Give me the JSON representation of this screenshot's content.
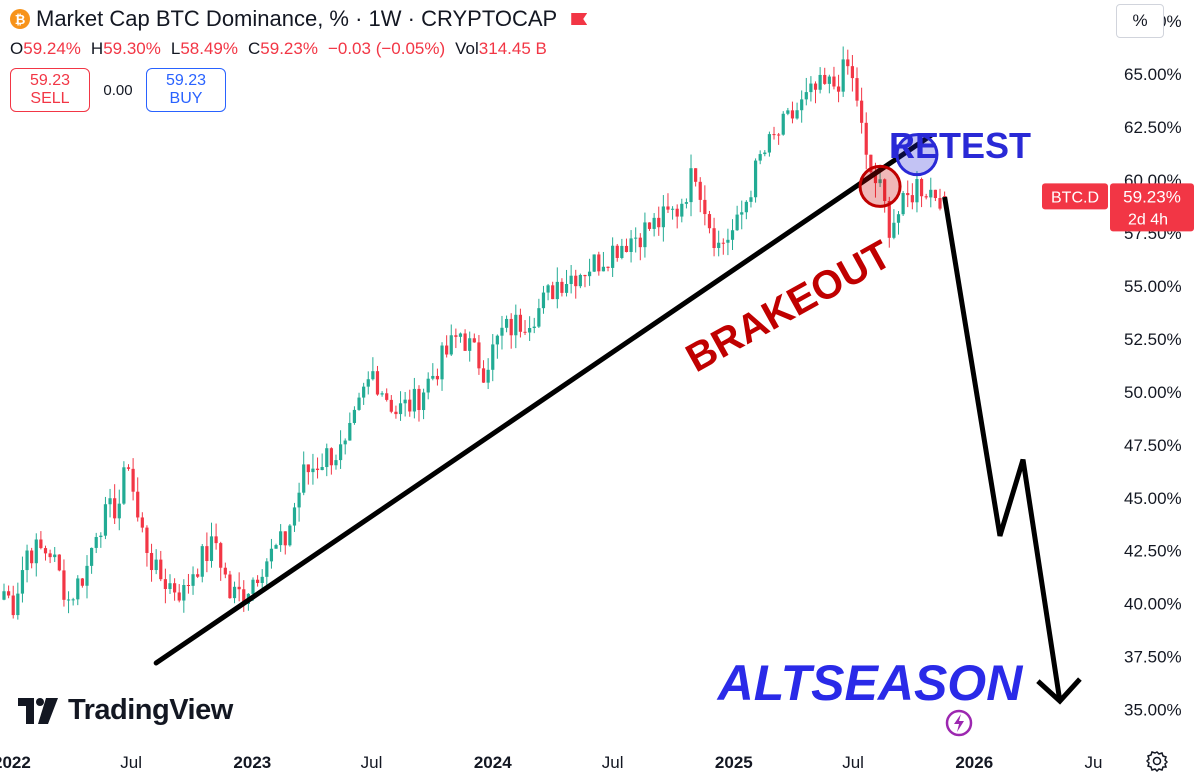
{
  "header": {
    "logo_glyph": "₿",
    "title": "Market Cap BTC Dominance, % · 1W · CRYPTOCAP",
    "open_label": "O",
    "open_value": "59.24%",
    "high_label": "H",
    "high_value": "59.30%",
    "low_label": "L",
    "low_value": "58.49%",
    "close_label": "C",
    "close_value": "59.23%",
    "change_value": "−0.03 (−0.05%)",
    "vol_label": "Vol",
    "vol_value": "314.45 B"
  },
  "trade": {
    "sell_price": "59.23",
    "sell_label": "SELL",
    "spread": "0.00",
    "buy_price": "59.23",
    "buy_label": "BUY"
  },
  "scale_mode": "%",
  "price_tag": {
    "symbol": "BTC.D",
    "value": "59.23%",
    "countdown": "2d 4h"
  },
  "brand": "TradingView",
  "colors": {
    "up": "#22ab94",
    "down": "#f23645",
    "trendline": "#000000",
    "breakout": "#c00000",
    "retest": "#2929d6",
    "altseason": "#2a2ae8",
    "text": "#131722"
  },
  "chart_data": {
    "type": "candlestick",
    "title": "Market Cap BTC Dominance, %",
    "interval": "1W",
    "source": "CRYPTOCAP",
    "ylabel": "%",
    "ylim": [
      33.8,
      68.5
    ],
    "y_ticks": [
      "35.00%",
      "37.50%",
      "40.00%",
      "42.50%",
      "45.00%",
      "47.50%",
      "50.00%",
      "52.50%",
      "55.00%",
      "57.50%",
      "60.00%",
      "62.50%",
      "65.00%",
      "67.50%"
    ],
    "x_ticks": [
      "2022",
      "Jul",
      "2023",
      "Jul",
      "2024",
      "Jul",
      "2025",
      "Jul",
      "2026",
      "Ju"
    ],
    "x_range": [
      "2021-12-20",
      "2026-07-20"
    ],
    "last": {
      "open": 59.24,
      "high": 59.3,
      "low": 58.49,
      "close": 59.23
    },
    "weekly_close_anchors": [
      [
        "2021-12-20",
        40.6
      ],
      [
        "2022-01-03",
        40.0
      ],
      [
        "2022-01-24",
        42.5
      ],
      [
        "2022-02-28",
        42.5
      ],
      [
        "2022-03-28",
        40.2
      ],
      [
        "2022-04-25",
        41.7
      ],
      [
        "2022-05-09",
        43.6
      ],
      [
        "2022-06-13",
        44.8
      ],
      [
        "2022-06-27",
        46.8
      ],
      [
        "2022-07-11",
        44.0
      ],
      [
        "2022-08-08",
        41.4
      ],
      [
        "2022-08-29",
        40.9
      ],
      [
        "2022-09-19",
        40.5
      ],
      [
        "2022-10-03",
        41.6
      ],
      [
        "2022-11-07",
        42.9
      ],
      [
        "2022-11-28",
        40.4
      ],
      [
        "2022-12-19",
        40.5
      ],
      [
        "2023-01-16",
        41.9
      ],
      [
        "2023-02-20",
        43.0
      ],
      [
        "2023-03-20",
        46.1
      ],
      [
        "2023-04-24",
        47.0
      ],
      [
        "2023-05-22",
        47.2
      ],
      [
        "2023-06-19",
        49.9
      ],
      [
        "2023-07-03",
        50.9
      ],
      [
        "2023-08-07",
        49.1
      ],
      [
        "2023-09-04",
        49.5
      ],
      [
        "2023-10-16",
        51.5
      ],
      [
        "2023-11-13",
        52.8
      ],
      [
        "2023-12-18",
        51.1
      ],
      [
        "2024-01-15",
        52.8
      ],
      [
        "2024-02-12",
        53.3
      ],
      [
        "2024-03-11",
        53.9
      ],
      [
        "2024-04-08",
        55.2
      ],
      [
        "2024-05-06",
        55.6
      ],
      [
        "2024-06-10",
        56.2
      ],
      [
        "2024-07-08",
        56.9
      ],
      [
        "2024-08-05",
        57.4
      ],
      [
        "2024-09-09",
        58.0
      ],
      [
        "2024-10-07",
        58.6
      ],
      [
        "2024-11-04",
        60.5
      ],
      [
        "2024-11-25",
        58.0
      ],
      [
        "2024-12-09",
        56.9
      ],
      [
        "2025-01-06",
        57.8
      ],
      [
        "2025-02-10",
        61.0
      ],
      [
        "2025-03-10",
        62.2
      ],
      [
        "2025-04-07",
        63.3
      ],
      [
        "2025-05-05",
        64.2
      ],
      [
        "2025-06-02",
        64.5
      ],
      [
        "2025-06-23",
        65.3
      ],
      [
        "2025-07-07",
        63.9
      ],
      [
        "2025-07-21",
        60.8
      ],
      [
        "2025-08-11",
        59.5
      ],
      [
        "2025-08-25",
        57.9
      ],
      [
        "2025-09-15",
        58.7
      ],
      [
        "2025-10-06",
        59.8
      ],
      [
        "2025-10-27",
        59.5
      ],
      [
        "2025-11-17",
        59.23
      ]
    ],
    "annotations": [
      {
        "text": "BRAKEOUT",
        "color": "#c00000"
      },
      {
        "text": "RETEST",
        "color": "#2929d6"
      },
      {
        "text": "ALTSEASON",
        "color": "#2a2ae8"
      }
    ],
    "trendline": [
      [
        "2022-08-08",
        37.2
      ],
      [
        "2025-10-27",
        62.1
      ]
    ],
    "breakout_circle": [
      "2025-08-11",
      59.7
    ],
    "retest_circle": [
      "2025-10-06",
      61.2
    ],
    "projection": [
      [
        "2025-11-17",
        59.2
      ],
      [
        "2026-02-09",
        43.2
      ],
      [
        "2026-03-16",
        46.8
      ],
      [
        "2026-05-11",
        35.4
      ]
    ],
    "projection_arrowhead": [
      "2026-05-11",
      35.4
    ],
    "grid": false,
    "legend": "none"
  }
}
